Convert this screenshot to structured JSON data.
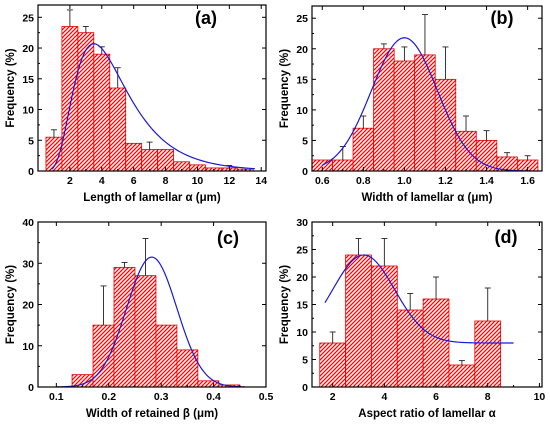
{
  "colors": {
    "bar_fill": "#ff0000",
    "bar_edge": "#e00000",
    "fit": "#1a1ad6",
    "axis": "#000000"
  },
  "chart_data": [
    {
      "panel": "(a)",
      "type": "bar",
      "xlabel": "Length of lamellar α (μm)",
      "ylabel": "Frequency (%)",
      "xlim": [
        0,
        14.3
      ],
      "ylim": [
        0,
        27
      ],
      "xticks": [
        2,
        4,
        6,
        8,
        10,
        12,
        14
      ],
      "yticks": [
        0,
        5,
        10,
        15,
        20,
        25
      ],
      "bin_width": 1,
      "x": [
        1,
        2,
        3,
        4,
        5,
        6,
        7,
        8,
        9,
        10,
        11,
        12,
        13
      ],
      "values": [
        5.5,
        23.5,
        22.5,
        19,
        13.5,
        4.5,
        3.5,
        3.5,
        1.5,
        1,
        0.5,
        0.5,
        0.3
      ],
      "errors": [
        1.2,
        2.7,
        1,
        1.2,
        3.3,
        0,
        1.2,
        0,
        0,
        0,
        0,
        0.4,
        0
      ],
      "fit": {
        "kind": "lognormal",
        "amp": 20.7,
        "mode": 3.5,
        "sigma": 0.48,
        "x_from": 0.85,
        "x_to": 13.6
      }
    },
    {
      "panel": "(b)",
      "type": "bar",
      "xlabel": "Width of lamellar α (μm)",
      "ylabel": "Frequency (%)",
      "xlim": [
        0.55,
        1.67
      ],
      "ylim": [
        0,
        27
      ],
      "xticks": [
        0.6,
        0.8,
        1.0,
        1.2,
        1.4,
        1.6
      ],
      "yticks": [
        0,
        5,
        10,
        15,
        20,
        25
      ],
      "bin_width": 0.1,
      "x": [
        0.6,
        0.7,
        0.8,
        0.9,
        1.0,
        1.1,
        1.2,
        1.3,
        1.4,
        1.5,
        1.6
      ],
      "values": [
        1.8,
        1.8,
        7,
        20,
        18,
        19,
        15,
        6.5,
        5,
        2.3,
        1.8
      ],
      "errors": [
        0,
        2.2,
        2,
        0.8,
        2.3,
        6.6,
        5.3,
        2.5,
        1.6,
        0.7,
        0.7
      ],
      "fit": {
        "kind": "gaussian",
        "amp": 21.8,
        "mu": 1.0,
        "sigma": 0.16,
        "x_from": 0.6,
        "x_to": 1.62
      }
    },
    {
      "panel": "(c)",
      "type": "bar",
      "xlabel": "Width of retained β (μm)",
      "ylabel": "Frequency (%)",
      "xlim": [
        0.065,
        0.5
      ],
      "ylim": [
        0,
        40
      ],
      "xticks": [
        0.1,
        0.2,
        0.3,
        0.4,
        0.5
      ],
      "yticks": [
        0,
        10,
        20,
        30,
        40
      ],
      "bin_width": 0.04,
      "x": [
        0.15,
        0.19,
        0.23,
        0.27,
        0.31,
        0.35,
        0.39,
        0.43
      ],
      "values": [
        3,
        15,
        29,
        27,
        15,
        9,
        1.5,
        0.5
      ],
      "errors": [
        0,
        9.5,
        1.2,
        9,
        0,
        0,
        0,
        0
      ],
      "fit": {
        "kind": "gaussian",
        "amp": 31.5,
        "mu": 0.282,
        "sigma": 0.048,
        "x_from": 0.1,
        "x_to": 0.46
      }
    },
    {
      "panel": "(d)",
      "type": "bar",
      "xlabel": "Aspect ratio of lamellar α",
      "ylabel": "Frequency (%)",
      "xlim": [
        1.2,
        10.1
      ],
      "ylim": [
        0,
        30
      ],
      "xticks": [
        2,
        4,
        6,
        8,
        10
      ],
      "yticks": [
        0,
        5,
        10,
        15,
        20,
        25,
        30
      ],
      "bin_width": 1,
      "x": [
        2,
        3,
        4,
        5,
        6,
        7,
        8
      ],
      "values": [
        8,
        24,
        22,
        14,
        16,
        4,
        12
      ],
      "errors": [
        2,
        3,
        5,
        3,
        4,
        0.8,
        6
      ],
      "fit": {
        "kind": "gaussian_offset",
        "amp": 16,
        "mu": 3.2,
        "sigma": 1.2,
        "offset": 8,
        "x_from": 1.7,
        "x_to": 9.0
      }
    }
  ]
}
